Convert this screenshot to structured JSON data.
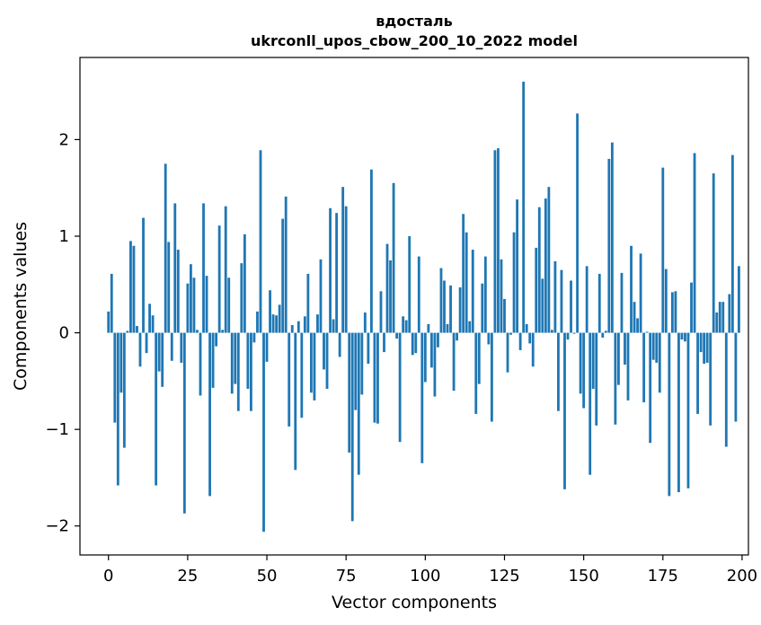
{
  "chart_data": {
    "type": "bar",
    "title": "вдосталь",
    "subtitle": "ukrconll_upos_cbow_200_10_2022 model",
    "xlabel": "Vector components",
    "ylabel": "Components values",
    "xlim": [
      -9,
      202
    ],
    "ylim": [
      -2.3,
      2.85
    ],
    "xticks": [
      0,
      25,
      50,
      75,
      100,
      125,
      150,
      175,
      200
    ],
    "yticks": [
      -2,
      -1,
      0,
      1,
      2
    ],
    "ytick_labels": [
      "−2",
      "−1",
      "0",
      "1",
      "2"
    ],
    "grid": false,
    "bar_color": "#1f77b4",
    "values": [
      0.22,
      0.61,
      -0.93,
      -1.58,
      -0.62,
      -1.19,
      0.02,
      0.95,
      0.9,
      0.07,
      -0.35,
      1.19,
      -0.21,
      0.3,
      0.18,
      -1.58,
      -0.4,
      -0.56,
      1.75,
      0.94,
      -0.29,
      1.34,
      0.86,
      -0.31,
      -1.87,
      0.51,
      0.71,
      0.57,
      0.03,
      -0.65,
      1.34,
      0.59,
      -1.69,
      -0.57,
      -0.14,
      1.11,
      0.03,
      1.31,
      0.57,
      -0.63,
      -0.53,
      -0.81,
      0.72,
      1.02,
      -0.58,
      -0.81,
      -0.1,
      0.22,
      1.89,
      -2.06,
      -0.3,
      0.44,
      0.19,
      0.18,
      0.29,
      1.18,
      1.41,
      -0.97,
      0.08,
      -1.42,
      0.12,
      -0.88,
      0.17,
      0.61,
      -0.62,
      -0.7,
      0.19,
      0.76,
      -0.38,
      -0.58,
      1.29,
      0.14,
      1.24,
      -0.25,
      1.51,
      1.31,
      -1.24,
      -1.95,
      -0.8,
      -1.47,
      -0.64,
      0.21,
      -0.32,
      1.69,
      -0.93,
      -0.94,
      0.43,
      -0.2,
      0.92,
      0.75,
      1.55,
      -0.06,
      -1.13,
      0.17,
      0.13,
      1.0,
      -0.23,
      -0.21,
      0.79,
      -1.35,
      -0.51,
      0.09,
      -0.36,
      -0.66,
      -0.15,
      0.67,
      0.54,
      0.09,
      0.49,
      -0.6,
      -0.08,
      0.47,
      1.23,
      1.04,
      0.12,
      0.86,
      -0.84,
      -0.53,
      0.51,
      0.79,
      -0.12,
      -0.92,
      1.89,
      1.91,
      0.76,
      0.35,
      -0.41,
      -0.02,
      1.04,
      1.38,
      -0.18,
      2.6,
      0.09,
      -0.11,
      -0.35,
      0.88,
      1.3,
      0.56,
      1.39,
      1.51,
      0.03,
      0.74,
      -0.81,
      0.65,
      -1.62,
      -0.07,
      0.54,
      -0.01,
      2.27,
      -0.63,
      -0.78,
      0.69,
      -1.47,
      -0.58,
      -0.96,
      0.61,
      -0.05,
      0.02,
      1.8,
      1.97,
      -0.95,
      -0.54,
      0.62,
      -0.33,
      -0.7,
      0.9,
      0.32,
      0.15,
      0.82,
      -0.72,
      0.01,
      -1.14,
      -0.28,
      -0.31,
      -0.62,
      1.71,
      0.66,
      -1.69,
      0.42,
      0.43,
      -1.65,
      -0.07,
      -0.09,
      -1.61,
      0.52,
      1.86,
      -0.84,
      -0.2,
      -0.32,
      -0.31,
      -0.96,
      1.65,
      0.21,
      0.32,
      0.32,
      -1.18,
      0.4,
      1.84,
      -0.92,
      0.69
    ]
  }
}
